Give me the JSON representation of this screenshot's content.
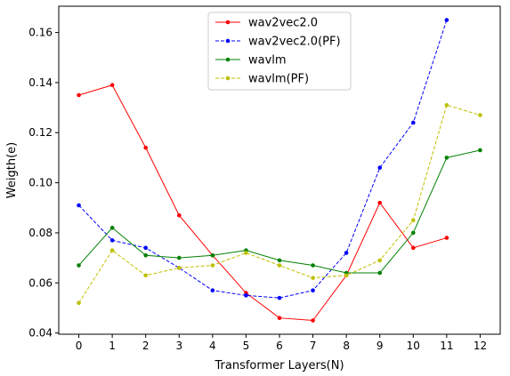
{
  "chart_data": {
    "type": "line",
    "title": "",
    "xlabel": "Transformer Layers(N)",
    "ylabel": "Weigth(e)",
    "x": [
      0,
      1,
      2,
      3,
      4,
      5,
      6,
      7,
      8,
      9,
      10,
      11,
      12
    ],
    "xlim": [
      -0.6,
      12.6
    ],
    "ylim": [
      0.0395,
      0.1705
    ],
    "yticks": [
      0.04,
      0.06,
      0.08,
      0.1,
      0.12,
      0.14,
      0.16
    ],
    "ytick_labels": [
      "0.04",
      "0.06",
      "0.08",
      "0.10",
      "0.12",
      "0.14",
      "0.16"
    ],
    "xtick_labels": [
      "0",
      "1",
      "2",
      "3",
      "4",
      "5",
      "6",
      "7",
      "8",
      "9",
      "10",
      "11",
      "12"
    ],
    "grid": false,
    "legend_position": "top-center",
    "series": [
      {
        "name": "wav2vec2.0",
        "color": "#ff0000",
        "dashed": false,
        "values": [
          0.135,
          0.139,
          0.114,
          0.087,
          0.071,
          0.056,
          0.046,
          0.045,
          0.063,
          0.092,
          0.074,
          0.078,
          null
        ]
      },
      {
        "name": "wav2vec2.0(PF)",
        "color": "#0000ff",
        "dashed": true,
        "values": [
          0.091,
          0.077,
          0.074,
          0.066,
          0.057,
          0.055,
          0.054,
          0.057,
          0.072,
          0.106,
          0.124,
          0.165,
          null
        ]
      },
      {
        "name": "wavlm",
        "color": "#008000",
        "dashed": false,
        "values": [
          0.067,
          0.082,
          0.071,
          0.07,
          0.071,
          0.073,
          0.069,
          0.067,
          0.064,
          0.064,
          0.08,
          0.11,
          0.113
        ]
      },
      {
        "name": "wavlm(PF)",
        "color": "#bfbf00",
        "dashed": true,
        "values": [
          0.052,
          0.073,
          0.063,
          0.066,
          0.067,
          0.072,
          0.067,
          0.062,
          0.063,
          0.069,
          0.085,
          0.131,
          0.127
        ]
      }
    ]
  }
}
